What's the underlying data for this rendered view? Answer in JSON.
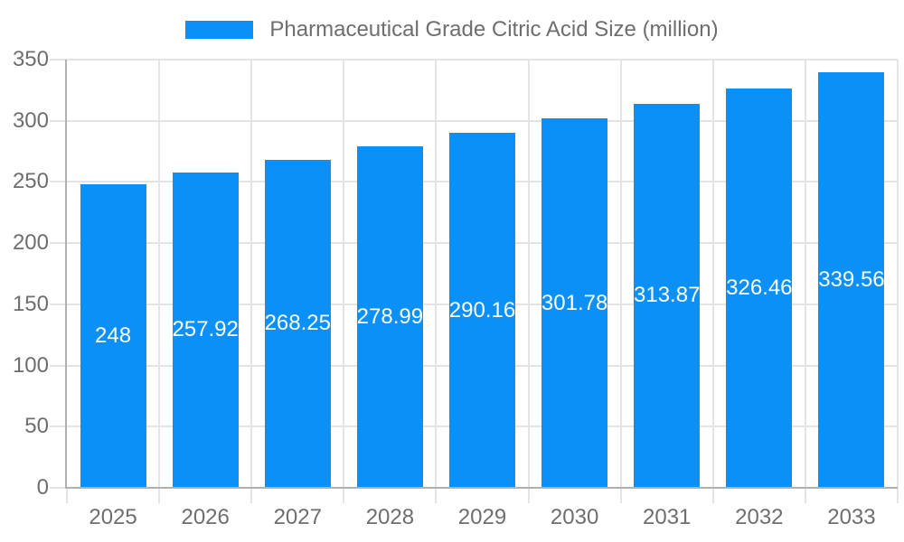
{
  "legend": {
    "label": "Pharmaceutical Grade Citric Acid Size (million)"
  },
  "chart_data": {
    "type": "bar",
    "title": "Pharmaceutical Grade Citric Acid Size (million)",
    "categories": [
      "2025",
      "2026",
      "2027",
      "2028",
      "2029",
      "2030",
      "2031",
      "2032",
      "2033"
    ],
    "values": [
      248,
      257.92,
      268.25,
      278.99,
      290.16,
      301.78,
      313.87,
      326.46,
      339.56
    ],
    "value_labels": [
      "248",
      "257.92",
      "268.25",
      "278.99",
      "290.16",
      "301.78",
      "313.87",
      "326.46",
      "339.56"
    ],
    "xlabel": "",
    "ylabel": "",
    "ylim": [
      0,
      350
    ],
    "yticks": [
      0,
      50,
      100,
      150,
      200,
      250,
      300,
      350
    ],
    "grid": true,
    "legend_position": "top-center",
    "colors": {
      "bar": "#0b90f8",
      "bar_label": "#ffffff",
      "gridline": "#e4e4e4",
      "axis_line": "#b0b0b0",
      "tick_label": "#6e6e6e",
      "background": "#ffffff"
    }
  }
}
